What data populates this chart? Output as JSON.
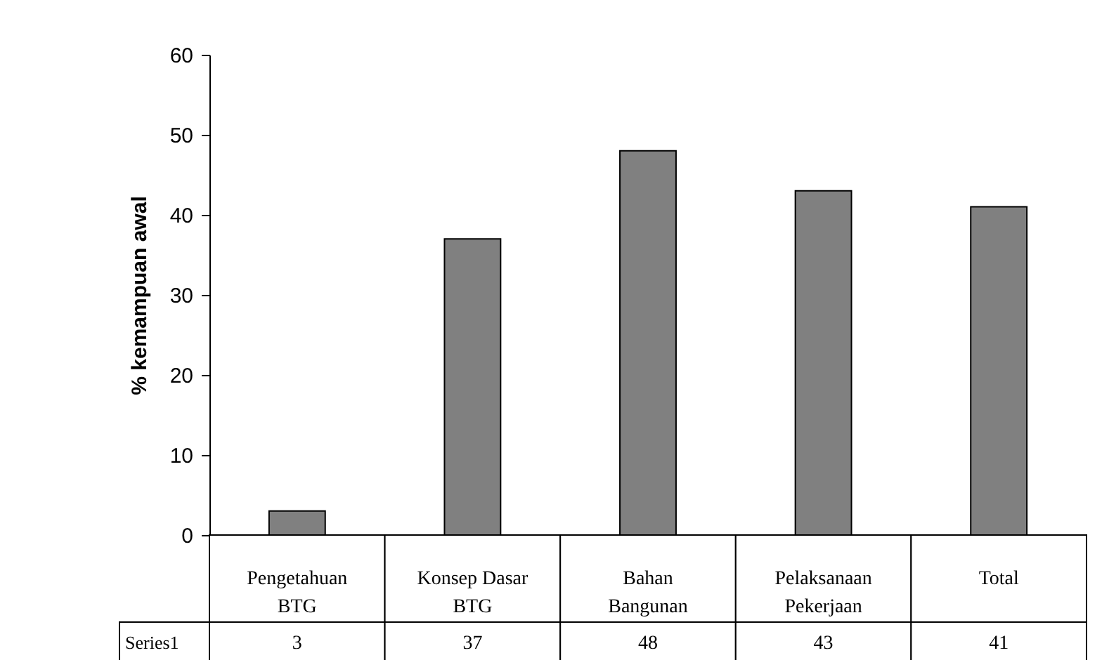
{
  "chart_data": {
    "type": "bar",
    "ylabel": "% kemampuan awal",
    "categories": [
      "Pengetahuan BTG",
      "Konsep Dasar BTG",
      "Bahan Bangunan",
      "Pelaksanaan Pekerjaan",
      "Total"
    ],
    "series": [
      {
        "name": "Series1",
        "color": "#808080",
        "values": [
          3,
          37,
          48,
          43,
          41
        ]
      }
    ],
    "ylim": [
      0,
      60
    ],
    "yticks": [
      0,
      10,
      20,
      30,
      40,
      50,
      60
    ],
    "grid": false,
    "data_labels": true
  }
}
